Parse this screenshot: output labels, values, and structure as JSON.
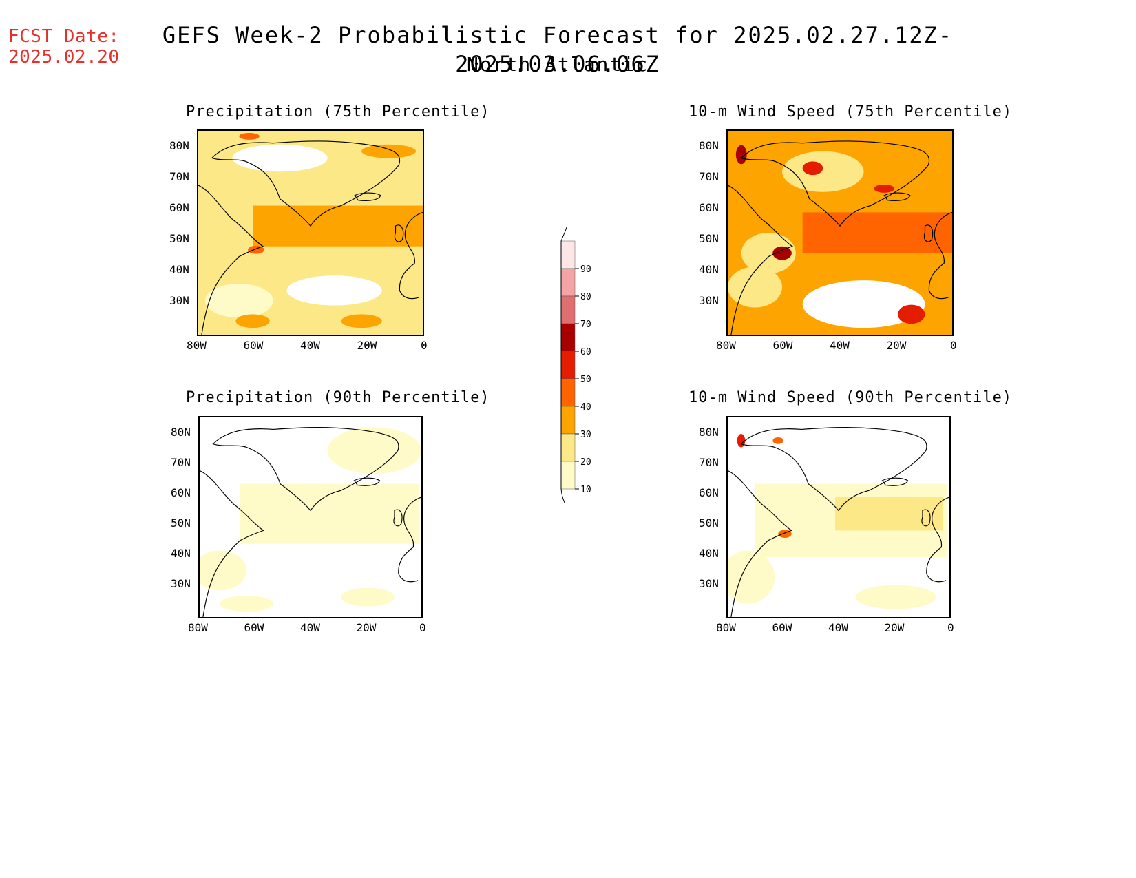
{
  "fcst_label": "FCST Date:",
  "fcst_date": "2025.02.20",
  "title": "GEFS Week-2 Probabilistic Forecast for 2025.02.27.12Z-2025.03.06.06Z",
  "subtitle": "North Atlantic",
  "panels": [
    {
      "title": "Precipitation (75th Percentile)"
    },
    {
      "title": "10-m Wind Speed (75th Percentile)"
    },
    {
      "title": "Precipitation (90th Percentile)"
    },
    {
      "title": "10-m Wind Speed (90th Percentile)"
    }
  ],
  "axes": {
    "lat_labels": [
      "80N",
      "70N",
      "60N",
      "50N",
      "40N",
      "30N"
    ],
    "lon_labels": [
      "80W",
      "60W",
      "40W",
      "20W",
      "0"
    ]
  },
  "colorbar": {
    "levels": [
      "10",
      "20",
      "30",
      "40",
      "50",
      "60",
      "70",
      "80",
      "90"
    ],
    "colors": [
      "#fffbc8",
      "#fde888",
      "#fea400",
      "#ff6400",
      "#e41c00",
      "#a80000",
      "#e07070",
      "#f4a4a4",
      "#fde6e6"
    ]
  }
}
